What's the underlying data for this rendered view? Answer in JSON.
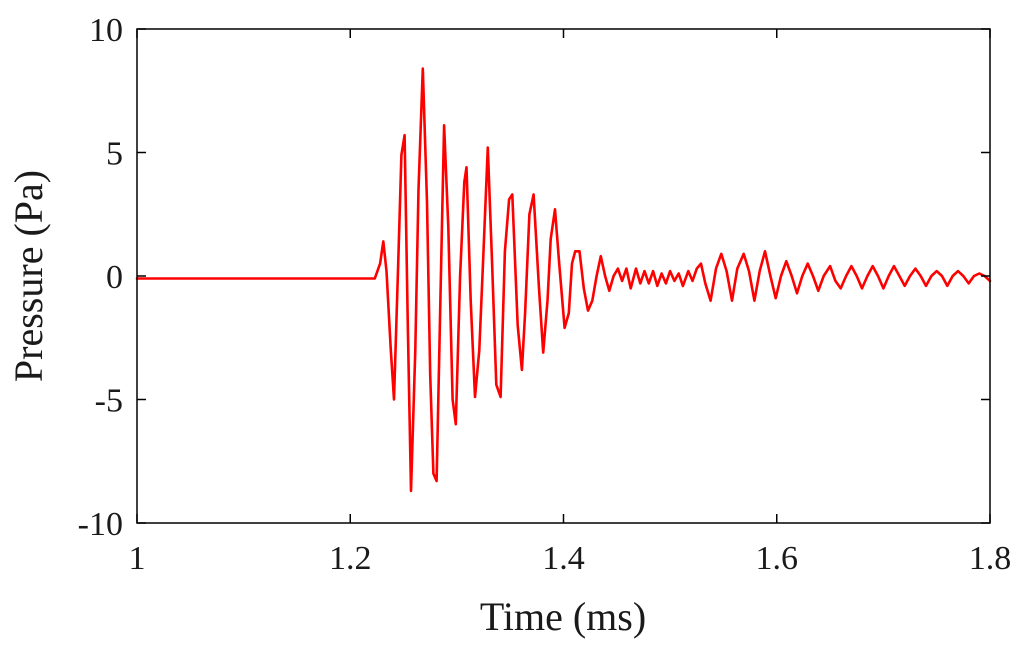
{
  "chart_data": {
    "type": "line",
    "title": "",
    "xlabel": "Time (ms)",
    "ylabel": "Pressure (Pa)",
    "xlim": [
      1,
      1.8
    ],
    "ylim": [
      -10,
      10
    ],
    "grid": false,
    "legend": "none",
    "x_ticks": [
      {
        "value": 1,
        "label": "1"
      },
      {
        "value": 1.2,
        "label": "1.2"
      },
      {
        "value": 1.4,
        "label": "1.4"
      },
      {
        "value": 1.6,
        "label": "1.6"
      },
      {
        "value": 1.8,
        "label": "1.8"
      }
    ],
    "y_ticks": [
      {
        "value": 10,
        "label": "10"
      },
      {
        "value": 5,
        "label": "5"
      },
      {
        "value": 0,
        "label": "0"
      },
      {
        "value": -5,
        "label": "-5"
      },
      {
        "value": -10,
        "label": "-10"
      }
    ],
    "series": [
      {
        "color": "#ff0000",
        "points": [
          [
            1.0,
            -0.1
          ],
          [
            1.05,
            -0.1
          ],
          [
            1.1,
            -0.1
          ],
          [
            1.15,
            -0.1
          ],
          [
            1.2,
            -0.1
          ],
          [
            1.223,
            -0.1
          ],
          [
            1.228,
            0.5
          ],
          [
            1.231,
            1.4
          ],
          [
            1.234,
            0.2
          ],
          [
            1.238,
            -3.0
          ],
          [
            1.241,
            -5.0
          ],
          [
            1.245,
            0.5
          ],
          [
            1.248,
            4.9
          ],
          [
            1.251,
            5.7
          ],
          [
            1.254,
            -2.0
          ],
          [
            1.257,
            -8.7
          ],
          [
            1.261,
            -3.0
          ],
          [
            1.264,
            3.5
          ],
          [
            1.268,
            8.4
          ],
          [
            1.272,
            3.0
          ],
          [
            1.275,
            -4.0
          ],
          [
            1.278,
            -8.0
          ],
          [
            1.281,
            -8.3
          ],
          [
            1.285,
            0.0
          ],
          [
            1.288,
            6.1
          ],
          [
            1.292,
            2.0
          ],
          [
            1.296,
            -5.0
          ],
          [
            1.299,
            -6.0
          ],
          [
            1.303,
            0.0
          ],
          [
            1.307,
            3.8
          ],
          [
            1.309,
            4.4
          ],
          [
            1.313,
            -1.0
          ],
          [
            1.317,
            -4.9
          ],
          [
            1.321,
            -3.0
          ],
          [
            1.325,
            1.0
          ],
          [
            1.329,
            5.2
          ],
          [
            1.333,
            0.5
          ],
          [
            1.337,
            -4.4
          ],
          [
            1.341,
            -4.9
          ],
          [
            1.345,
            1.0
          ],
          [
            1.349,
            3.1
          ],
          [
            1.352,
            3.3
          ],
          [
            1.357,
            -2.0
          ],
          [
            1.361,
            -3.8
          ],
          [
            1.364,
            -1.5
          ],
          [
            1.368,
            2.5
          ],
          [
            1.372,
            3.3
          ],
          [
            1.377,
            -0.5
          ],
          [
            1.381,
            -3.1
          ],
          [
            1.385,
            -1.0
          ],
          [
            1.388,
            1.5
          ],
          [
            1.392,
            2.7
          ],
          [
            1.396,
            0.5
          ],
          [
            1.401,
            -2.1
          ],
          [
            1.405,
            -1.5
          ],
          [
            1.408,
            0.5
          ],
          [
            1.411,
            1.0
          ],
          [
            1.415,
            1.0
          ],
          [
            1.419,
            -0.5
          ],
          [
            1.423,
            -1.4
          ],
          [
            1.427,
            -1.0
          ],
          [
            1.431,
            0.0
          ],
          [
            1.435,
            0.8
          ],
          [
            1.439,
            0.0
          ],
          [
            1.443,
            -0.6
          ],
          [
            1.447,
            0.0
          ],
          [
            1.451,
            0.3
          ],
          [
            1.455,
            -0.2
          ],
          [
            1.459,
            0.3
          ],
          [
            1.463,
            -0.5
          ],
          [
            1.468,
            0.3
          ],
          [
            1.472,
            -0.3
          ],
          [
            1.476,
            0.2
          ],
          [
            1.48,
            -0.3
          ],
          [
            1.484,
            0.2
          ],
          [
            1.488,
            -0.4
          ],
          [
            1.492,
            0.1
          ],
          [
            1.496,
            -0.3
          ],
          [
            1.5,
            0.2
          ],
          [
            1.504,
            -0.2
          ],
          [
            1.508,
            0.1
          ],
          [
            1.512,
            -0.4
          ],
          [
            1.517,
            0.2
          ],
          [
            1.521,
            -0.2
          ],
          [
            1.525,
            0.3
          ],
          [
            1.529,
            0.5
          ],
          [
            1.533,
            -0.3
          ],
          [
            1.538,
            -1.0
          ],
          [
            1.543,
            0.3
          ],
          [
            1.548,
            0.9
          ],
          [
            1.553,
            0.2
          ],
          [
            1.558,
            -1.0
          ],
          [
            1.563,
            0.3
          ],
          [
            1.569,
            0.9
          ],
          [
            1.574,
            0.2
          ],
          [
            1.579,
            -1.0
          ],
          [
            1.584,
            0.2
          ],
          [
            1.589,
            1.0
          ],
          [
            1.594,
            0.0
          ],
          [
            1.599,
            -0.9
          ],
          [
            1.604,
            0.0
          ],
          [
            1.609,
            0.6
          ],
          [
            1.614,
            0.0
          ],
          [
            1.619,
            -0.7
          ],
          [
            1.624,
            0.0
          ],
          [
            1.629,
            0.5
          ],
          [
            1.634,
            0.0
          ],
          [
            1.639,
            -0.6
          ],
          [
            1.644,
            0.0
          ],
          [
            1.65,
            0.4
          ],
          [
            1.655,
            -0.2
          ],
          [
            1.66,
            -0.5
          ],
          [
            1.665,
            0.0
          ],
          [
            1.67,
            0.4
          ],
          [
            1.675,
            0.0
          ],
          [
            1.68,
            -0.5
          ],
          [
            1.685,
            0.0
          ],
          [
            1.69,
            0.4
          ],
          [
            1.695,
            0.0
          ],
          [
            1.7,
            -0.5
          ],
          [
            1.705,
            0.0
          ],
          [
            1.71,
            0.4
          ],
          [
            1.715,
            0.0
          ],
          [
            1.72,
            -0.4
          ],
          [
            1.725,
            0.0
          ],
          [
            1.73,
            0.3
          ],
          [
            1.735,
            0.0
          ],
          [
            1.74,
            -0.4
          ],
          [
            1.745,
            0.0
          ],
          [
            1.75,
            0.2
          ],
          [
            1.755,
            0.0
          ],
          [
            1.76,
            -0.4
          ],
          [
            1.765,
            0.0
          ],
          [
            1.77,
            0.2
          ],
          [
            1.775,
            0.0
          ],
          [
            1.78,
            -0.3
          ],
          [
            1.785,
            0.0
          ],
          [
            1.79,
            0.1
          ],
          [
            1.795,
            0.0
          ],
          [
            1.8,
            -0.2
          ]
        ]
      }
    ]
  }
}
